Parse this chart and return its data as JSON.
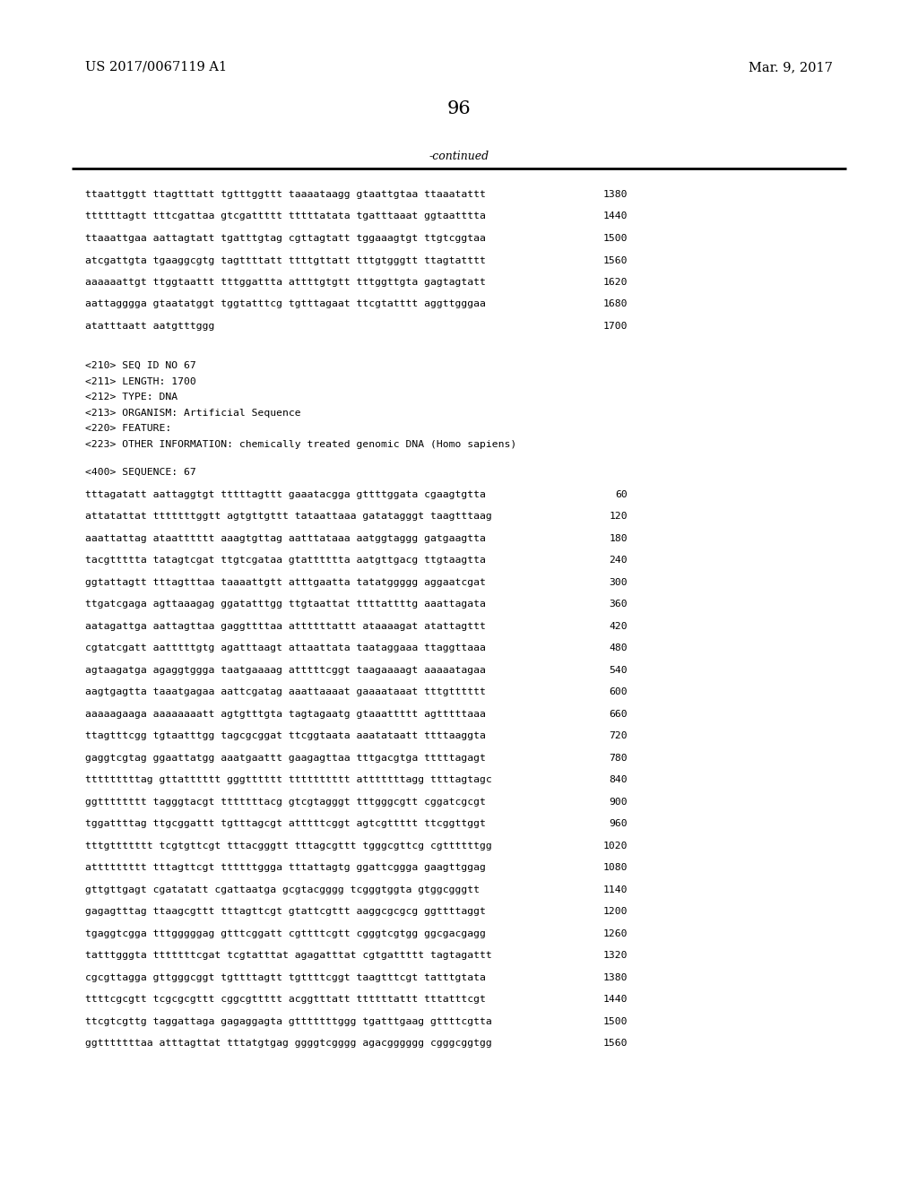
{
  "background_color": "#ffffff",
  "header_left": "US 2017/0067119 A1",
  "header_right": "Mar. 9, 2017",
  "page_number": "96",
  "continued_text": "-continued",
  "top_lines": [
    [
      "ttaattggtt ttagtttatt tgtttggttt taaaataagg gtaattgtaa ttaaatattt",
      "1380"
    ],
    [
      "ttttttagtt tttcgattaa gtcgattttt tttttatata tgatttaaat ggtaatttta",
      "1440"
    ],
    [
      "ttaaattgaa aattagtatt tgatttgtag cgttagtatt tggaaagtgt ttgtcggtaa",
      "1500"
    ],
    [
      "atcgattgta tgaaggcgtg tagttttatt ttttgttatt tttgtgggtt ttagtatttt",
      "1560"
    ],
    [
      "aaaaaattgt ttggtaattt tttggattta attttgtgtt tttggttgta gagtagtatt",
      "1620"
    ],
    [
      "aattagggga gtaatatggt tggtatttcg tgtttagaat ttcgtatttt aggttgggaa",
      "1680"
    ],
    [
      "atatttaatt aatgtttggg",
      "1700"
    ]
  ],
  "metadata_lines": [
    "<210> SEQ ID NO 67",
    "<211> LENGTH: 1700",
    "<212> TYPE: DNA",
    "<213> ORGANISM: Artificial Sequence",
    "<220> FEATURE:",
    "<223> OTHER INFORMATION: chemically treated genomic DNA (Homo sapiens)"
  ],
  "sequence_header": "<400> SEQUENCE: 67",
  "sequence_lines": [
    [
      "tttagatatt aattaggtgt tttttagttt gaaatacgga gttttggata cgaagtgtta",
      "60"
    ],
    [
      "attatattat tttttttggtt agtgttgttt tataattaaa gatatagggt taagtttaag",
      "120"
    ],
    [
      "aaattattag ataatttttt aaagtgttag aatttataaa aatggtaggg gatgaagtta",
      "180"
    ],
    [
      "tacgttttta tatagtcgat ttgtcgataa gtatttttta aatgttgacg ttgtaagtta",
      "240"
    ],
    [
      "ggtattagtt tttagtttaa taaaattgtt atttgaatta tatatggggg aggaatcgat",
      "300"
    ],
    [
      "ttgatcgaga agttaaagag ggatatttgg ttgtaattat ttttattttg aaattagata",
      "360"
    ],
    [
      "aatagattga aattagttaa gaggttttaa attttttattt ataaaagat atattagttt",
      "420"
    ],
    [
      "cgtatcgatt aatttttgtg agatttaagt attaattata taataggaaa ttaggttaaa",
      "480"
    ],
    [
      "agtaagatga agaggtggga taatgaaaag atttttcggt taagaaaagt aaaaatagaa",
      "540"
    ],
    [
      "aagtgagtta taaatgagaa aattcgatag aaattaaaat gaaaataaat tttgtttttt",
      "600"
    ],
    [
      "aaaaagaaga aaaaaaaatt agtgtttgta tagtagaatg gtaaattttt agtttttaaa",
      "660"
    ],
    [
      "ttagtttcgg tgtaatttgg tagcgcggat ttcggtaata aaatataatt ttttaaggta",
      "720"
    ],
    [
      "gaggtcgtag ggaattatgg aaatgaattt gaagagttaa tttgacgtga tttttagagt",
      "780"
    ],
    [
      "tttttttttag gttatttttt gggtttttt tttttttttt atttttttagg ttttagtagc",
      "840"
    ],
    [
      "ggtttttttt tagggtacgt tttttttacg gtcgtagggt tttgggcgtt cggatcgcgt",
      "900"
    ],
    [
      "tggattttag ttgcggattt tgtttagcgt atttttcggt agtcgttttt ttcggttggt",
      "960"
    ],
    [
      "tttgttttttt tcgtgttcgt tttacgggtt tttagcgttt tgggcgttcg cgttttttgg",
      "1020"
    ],
    [
      "attttttttt tttagttcgt ttttttggga tttattagtg ggattcggga gaagttggag",
      "1080"
    ],
    [
      "gttgttgagt cgatatatt cgattaatga gcgtacgggg tcgggtggta gtggcgggtt",
      "1140"
    ],
    [
      "gagagtttag ttaagcgttt tttagttcgt gtattcgttt aaggcgcgcg ggttttaggt",
      "1200"
    ],
    [
      "tgaggtcgga tttgggggag gtttcggatt cgttttcgtt cgggtcgtgg ggcgacgagg",
      "1260"
    ],
    [
      "tatttgggta tttttttcgat tcgtatttat agagatttat cgtgattttt tagtagattt",
      "1320"
    ],
    [
      "cgcgttagga gttgggcggt tgttttagtt tgttttcggt taagtttcgt tatttgtata",
      "1380"
    ],
    [
      "ttttcgcgtt tcgcgcgttt cggcgttttt acggtttatt ttttttattt tttatttcgt",
      "1440"
    ],
    [
      "ttcgtcgttg taggattaga gagaggagta gtttttttggg tgatttgaag gttttcgtta",
      "1500"
    ],
    [
      "ggtttttttaa atttagttat tttatgtgag ggggtcgggg agacgggggg cgggcggtgg",
      "1560"
    ]
  ]
}
